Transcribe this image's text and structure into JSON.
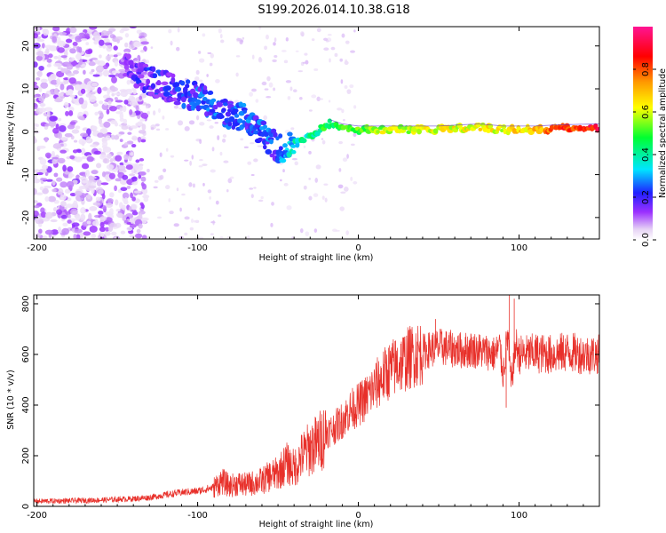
{
  "title": "S199.2026.014.10.38.G18",
  "chart_data": [
    {
      "type": "heatmap",
      "name": "spectrogram",
      "xlabel": "Height of straight line (km)",
      "ylabel": "Frequency (Hz)",
      "xlim": [
        -202,
        150
      ],
      "ylim": [
        -25,
        24.5
      ],
      "xticks": [
        -200,
        -100,
        0,
        100
      ],
      "yticks": [
        -20,
        -10,
        0,
        10,
        20
      ],
      "colorbar": {
        "label": "Normalized spectral amplitude",
        "range": [
          0,
          1
        ],
        "ticks": [
          "0.0",
          "0.2",
          "0.4",
          "0.6",
          "0.8"
        ],
        "tick_values": [
          0.0,
          0.2,
          0.4,
          0.6,
          0.8
        ]
      },
      "ridge": {
        "x": [
          -145,
          -130,
          -115,
          -100,
          -90,
          -80,
          -70,
          -60,
          -50,
          -42,
          -35,
          -25,
          -18,
          -10,
          0,
          10,
          30,
          50,
          75,
          90,
          110,
          125,
          150
        ],
        "freq": [
          15,
          12,
          10,
          8,
          6,
          4,
          3,
          0,
          -4,
          -3,
          -2,
          0,
          2,
          1,
          0.5,
          0.5,
          0.5,
          0.5,
          1,
          0.5,
          0.5,
          0.8,
          1
        ],
        "amplitude": [
          0.2,
          0.25,
          0.25,
          0.3,
          0.3,
          0.3,
          0.3,
          0.3,
          0.3,
          0.4,
          0.45,
          0.5,
          0.55,
          0.6,
          0.6,
          0.65,
          0.65,
          0.7,
          0.7,
          0.7,
          0.75,
          0.9,
          0.95
        ]
      }
    },
    {
      "type": "line",
      "name": "snr",
      "xlabel": "Height of straight line (km)",
      "ylabel": "SNR (10 * v/v)",
      "xlim": [
        -202,
        150
      ],
      "ylim": [
        0,
        835
      ],
      "xticks": [
        -200,
        -100,
        0,
        100
      ],
      "yticks": [
        0,
        200,
        400,
        600,
        800
      ],
      "color": "#e8302a",
      "series": [
        {
          "name": "SNR",
          "x": [
            -202,
            -180,
            -160,
            -140,
            -130,
            -120,
            -110,
            -100,
            -90,
            -85,
            -80,
            -75,
            -70,
            -60,
            -55,
            -50,
            -45,
            -40,
            -35,
            -30,
            -25,
            -20,
            -15,
            -10,
            -5,
            0,
            5,
            10,
            15,
            20,
            25,
            30,
            35,
            40,
            45,
            50,
            55,
            60,
            65,
            70,
            75,
            80,
            85,
            88,
            90,
            93,
            95,
            98,
            100,
            105,
            110,
            120,
            130,
            140,
            150
          ],
          "y": [
            20,
            22,
            25,
            30,
            35,
            45,
            55,
            60,
            75,
            100,
            80,
            90,
            85,
            100,
            120,
            130,
            170,
            150,
            200,
            230,
            250,
            290,
            310,
            340,
            380,
            400,
            430,
            470,
            510,
            540,
            560,
            580,
            600,
            610,
            620,
            630,
            625,
            620,
            615,
            620,
            615,
            610,
            600,
            630,
            520,
            680,
            480,
            640,
            600,
            600,
            605,
            600,
            610,
            600,
            600
          ]
        }
      ]
    }
  ]
}
